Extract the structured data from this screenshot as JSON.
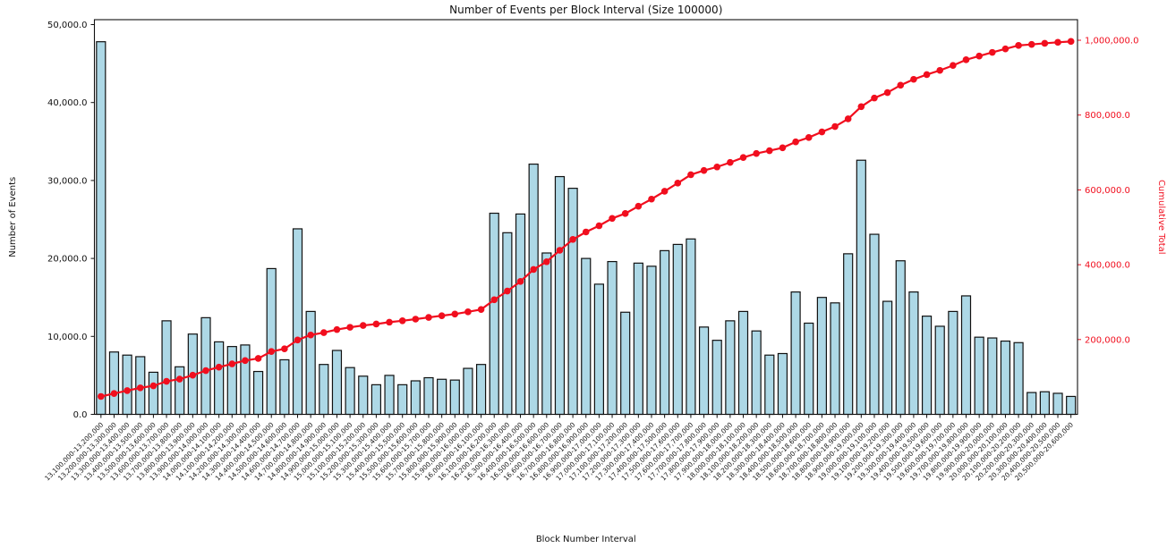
{
  "figure": {
    "title": "Number of Events per Block Interval (Size 100000)",
    "background_color": "#ffffff"
  },
  "chart_data": {
    "type": "bar+line",
    "title": "Number of Events per Block Interval (Size 100000)",
    "xlabel": "Block Number Interval",
    "ylabel_left": "Number of Events",
    "ylabel_right": "Cumulative Total",
    "legend": "none",
    "grid": false,
    "bar_color": "#ADD8E6",
    "bar_edge_color": "#111111",
    "line_color": "#f10e1e",
    "axis_color": "#222222",
    "ylim_left": [
      0,
      50630
    ],
    "ylim_right": [
      0,
      1055000
    ],
    "y_left_ticks": [
      {
        "v": 0,
        "label": "0.0"
      },
      {
        "v": 10000,
        "label": "10,000.0"
      },
      {
        "v": 20000,
        "label": "20,000.0"
      },
      {
        "v": 30000,
        "label": "30,000.0"
      },
      {
        "v": 40000,
        "label": "40,000.0"
      },
      {
        "v": 50000,
        "label": "50,000.0"
      }
    ],
    "y_right_ticks": [
      {
        "v": 200000,
        "label": "200,000.0"
      },
      {
        "v": 400000,
        "label": "400,000.0"
      },
      {
        "v": 600000,
        "label": "600,000.0"
      },
      {
        "v": 800000,
        "label": "800,000.0"
      },
      {
        "v": 1000000,
        "label": "1,000,000.0"
      }
    ],
    "categories": [
      "13,100,000-13,200,000",
      "13,200,000-13,300,000",
      "13,300,000-13,400,000",
      "13,400,000-13,500,000",
      "13,500,000-13,600,000",
      "13,600,000-13,700,000",
      "13,700,000-13,800,000",
      "13,800,000-13,900,000",
      "13,900,000-14,000,000",
      "14,000,000-14,100,000",
      "14,100,000-14,200,000",
      "14,200,000-14,300,000",
      "14,300,000-14,400,000",
      "14,400,000-14,500,000",
      "14,500,000-14,600,000",
      "14,600,000-14,700,000",
      "14,700,000-14,800,000",
      "14,800,000-14,900,000",
      "14,900,000-15,000,000",
      "15,000,000-15,100,000",
      "15,100,000-15,200,000",
      "15,200,000-15,300,000",
      "15,300,000-15,400,000",
      "15,400,000-15,500,000",
      "15,500,000-15,600,000",
      "15,600,000-15,700,000",
      "15,700,000-15,800,000",
      "15,800,000-15,900,000",
      "15,900,000-16,000,000",
      "16,000,000-16,100,000",
      "16,100,000-16,200,000",
      "16,200,000-16,300,000",
      "16,300,000-16,400,000",
      "16,400,000-16,500,000",
      "16,500,000-16,600,000",
      "16,600,000-16,700,000",
      "16,700,000-16,800,000",
      "16,800,000-16,900,000",
      "16,900,000-17,000,000",
      "17,000,000-17,100,000",
      "17,100,000-17,200,000",
      "17,200,000-17,300,000",
      "17,300,000-17,400,000",
      "17,400,000-17,500,000",
      "17,500,000-17,600,000",
      "17,600,000-17,700,000",
      "17,700,000-17,800,000",
      "17,800,000-17,900,000",
      "17,900,000-18,000,000",
      "18,000,000-18,100,000",
      "18,100,000-18,200,000",
      "18,200,000-18,300,000",
      "18,300,000-18,400,000",
      "18,400,000-18,500,000",
      "18,500,000-18,600,000",
      "18,600,000-18,700,000",
      "18,700,000-18,800,000",
      "18,800,000-18,900,000",
      "18,900,000-19,000,000",
      "19,000,000-19,100,000",
      "19,100,000-19,200,000",
      "19,200,000-19,300,000",
      "19,300,000-19,400,000",
      "19,400,000-19,500,000",
      "19,500,000-19,600,000",
      "19,600,000-19,700,000",
      "19,700,000-19,800,000",
      "19,800,000-19,900,000",
      "19,900,000-20,000,000",
      "20,000,000-20,100,000",
      "20,100,000-20,200,000",
      "20,200,000-20,300,000",
      "20,300,000-20,400,000",
      "20,400,000-20,500,000",
      "20,500,000-20,600,000"
    ],
    "series": [
      {
        "name": "Number of Events",
        "axis": "left",
        "values": [
          47800,
          8000,
          7600,
          7400,
          5400,
          12000,
          6100,
          10300,
          12400,
          9300,
          8700,
          8900,
          5500,
          18700,
          7000,
          23800,
          13200,
          6400,
          8200,
          6000,
          4900,
          3800,
          5000,
          3800,
          4300,
          4700,
          4500,
          4400,
          5900,
          6400,
          25800,
          23300,
          25700,
          32100,
          20700,
          30500,
          29000,
          20000,
          16700,
          19600,
          13100,
          19400,
          19000,
          21000,
          21800,
          22500,
          11200,
          9500,
          12000,
          13200,
          10700,
          7600,
          7800,
          15700,
          11700,
          15000,
          14300,
          20600,
          32600,
          23100,
          14500,
          19700,
          15700,
          12600,
          11300,
          13200,
          15200,
          9900,
          9800,
          9400,
          9200,
          2800,
          2900,
          2700,
          2300
        ]
      },
      {
        "name": "Cumulative Total",
        "axis": "right",
        "values": [
          47800,
          55800,
          63400,
          70800,
          76200,
          88200,
          94300,
          104600,
          117000,
          126300,
          135000,
          143900,
          149400,
          168100,
          175100,
          198900,
          212100,
          218500,
          226700,
          232700,
          237600,
          241400,
          246400,
          250200,
          254500,
          259200,
          263700,
          268100,
          274000,
          280400,
          306200,
          329500,
          355200,
          387300,
          408000,
          438500,
          467500,
          487500,
          504200,
          523800,
          536900,
          556300,
          575300,
          596300,
          618100,
          640600,
          651800,
          661300,
          673300,
          686500,
          697200,
          704800,
          712600,
          728300,
          740000,
          755000,
          769300,
          789900,
          822500,
          845600,
          860100,
          879800,
          895500,
          908100,
          919400,
          932600,
          947800,
          957700,
          967500,
          976900,
          986100,
          988900,
          991800,
          994500,
          996800
        ]
      }
    ]
  }
}
